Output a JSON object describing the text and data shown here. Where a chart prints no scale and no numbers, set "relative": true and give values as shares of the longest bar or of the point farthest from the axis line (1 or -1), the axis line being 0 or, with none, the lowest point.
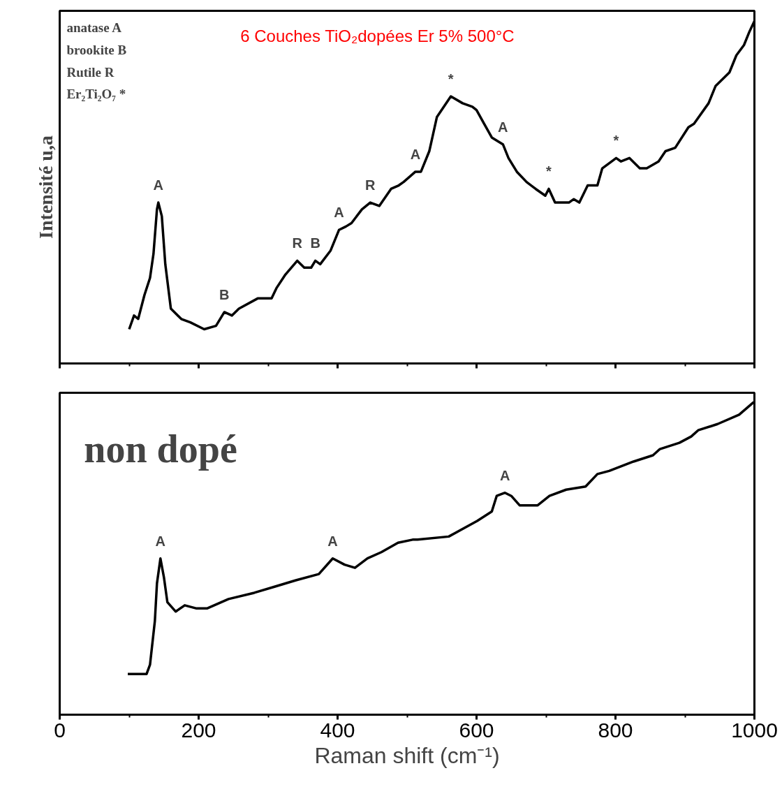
{
  "chart_data": [
    {
      "type": "line",
      "title": "6 Couches TiO₂dopées Er 5%  500°C",
      "ylabel": "Intensité u,a",
      "relative": true,
      "xlim": [
        0,
        1000
      ],
      "xticks": [
        0,
        200,
        400,
        600,
        800,
        1000
      ],
      "tick_labels": false,
      "grid": false,
      "marker": "none",
      "line_style": "solid",
      "series": [
        {
          "color": "#000000",
          "x": [
            100,
            107,
            113,
            122,
            130,
            135,
            140,
            142,
            147,
            152,
            160,
            175,
            188,
            208,
            225,
            237,
            248,
            258,
            285,
            297,
            305,
            312,
            325,
            342,
            352,
            362,
            368,
            375,
            390,
            402,
            412,
            420,
            435,
            447,
            460,
            477,
            488,
            495,
            512,
            520,
            532,
            543,
            553,
            563,
            580,
            594,
            600,
            611,
            622,
            638,
            646,
            658,
            672,
            685,
            699,
            704,
            713,
            733,
            740,
            748,
            760,
            774,
            781,
            801,
            808,
            820,
            835,
            845,
            862,
            872,
            886,
            905,
            913,
            934,
            944,
            964,
            974,
            985,
            993,
            1000
          ],
          "values": [
            0.1,
            0.14,
            0.13,
            0.2,
            0.25,
            0.32,
            0.45,
            0.47,
            0.43,
            0.29,
            0.16,
            0.13,
            0.12,
            0.1,
            0.11,
            0.15,
            0.14,
            0.16,
            0.19,
            0.19,
            0.19,
            0.22,
            0.26,
            0.3,
            0.28,
            0.28,
            0.3,
            0.29,
            0.33,
            0.39,
            0.4,
            0.41,
            0.45,
            0.47,
            0.46,
            0.51,
            0.52,
            0.53,
            0.56,
            0.56,
            0.62,
            0.72,
            0.75,
            0.78,
            0.76,
            0.75,
            0.74,
            0.7,
            0.66,
            0.64,
            0.6,
            0.56,
            0.53,
            0.51,
            0.49,
            0.51,
            0.47,
            0.47,
            0.48,
            0.47,
            0.52,
            0.52,
            0.57,
            0.6,
            0.59,
            0.6,
            0.57,
            0.57,
            0.59,
            0.62,
            0.63,
            0.69,
            0.7,
            0.76,
            0.81,
            0.85,
            0.9,
            0.93,
            0.97,
            1.0
          ]
        }
      ],
      "annotations": [
        "anatase A",
        "brookite B",
        "Rutile R",
        "Er₂Ti₂O₇ *",
        {
          "text": "A",
          "x": 142,
          "y": 0.47
        },
        {
          "text": "B",
          "x": 237,
          "y": 0.15
        },
        {
          "text": "R",
          "x": 342,
          "y": 0.3
        },
        {
          "text": "B",
          "x": 368,
          "y": 0.3
        },
        {
          "text": "A",
          "x": 402,
          "y": 0.39
        },
        {
          "text": "R",
          "x": 447,
          "y": 0.47
        },
        {
          "text": "A",
          "x": 512,
          "y": 0.56
        },
        {
          "text": "*",
          "x": 563,
          "y": 0.78
        },
        {
          "text": "A",
          "x": 638,
          "y": 0.64
        },
        {
          "text": "*",
          "x": 704,
          "y": 0.51
        },
        {
          "text": "*",
          "x": 801,
          "y": 0.6
        }
      ]
    },
    {
      "type": "line",
      "xlabel": "Raman shift (cm⁻¹)",
      "relative": true,
      "xlim": [
        0,
        1000
      ],
      "xticks": [
        0,
        200,
        400,
        600,
        800,
        1000
      ],
      "tick_labels": "x",
      "grid": false,
      "marker": "none",
      "line_style": "solid",
      "series": [
        {
          "color": "#000000",
          "x": [
            98,
            125,
            130,
            137,
            140,
            145,
            150,
            155,
            167,
            180,
            197,
            212,
            243,
            280,
            310,
            340,
            373,
            393,
            410,
            425,
            443,
            463,
            487,
            508,
            515,
            560,
            601,
            622,
            629,
            641,
            650,
            662,
            688,
            705,
            729,
            757,
            774,
            791,
            826,
            854,
            864,
            892,
            909,
            919,
            947,
            978,
            999
          ],
          "values": [
            0.13,
            0.13,
            0.16,
            0.3,
            0.42,
            0.5,
            0.44,
            0.36,
            0.33,
            0.35,
            0.34,
            0.34,
            0.37,
            0.39,
            0.41,
            0.43,
            0.45,
            0.5,
            0.48,
            0.47,
            0.5,
            0.52,
            0.55,
            0.56,
            0.56,
            0.57,
            0.62,
            0.65,
            0.7,
            0.71,
            0.7,
            0.67,
            0.67,
            0.7,
            0.72,
            0.73,
            0.77,
            0.78,
            0.81,
            0.83,
            0.85,
            0.87,
            0.89,
            0.91,
            0.93,
            0.96,
            1.0
          ]
        }
      ],
      "annotations": [
        "non dopé",
        {
          "text": "A",
          "x": 145,
          "y": 0.5
        },
        {
          "text": "A",
          "x": 393,
          "y": 0.5
        },
        {
          "text": "A",
          "x": 641,
          "y": 0.71
        }
      ]
    }
  ]
}
